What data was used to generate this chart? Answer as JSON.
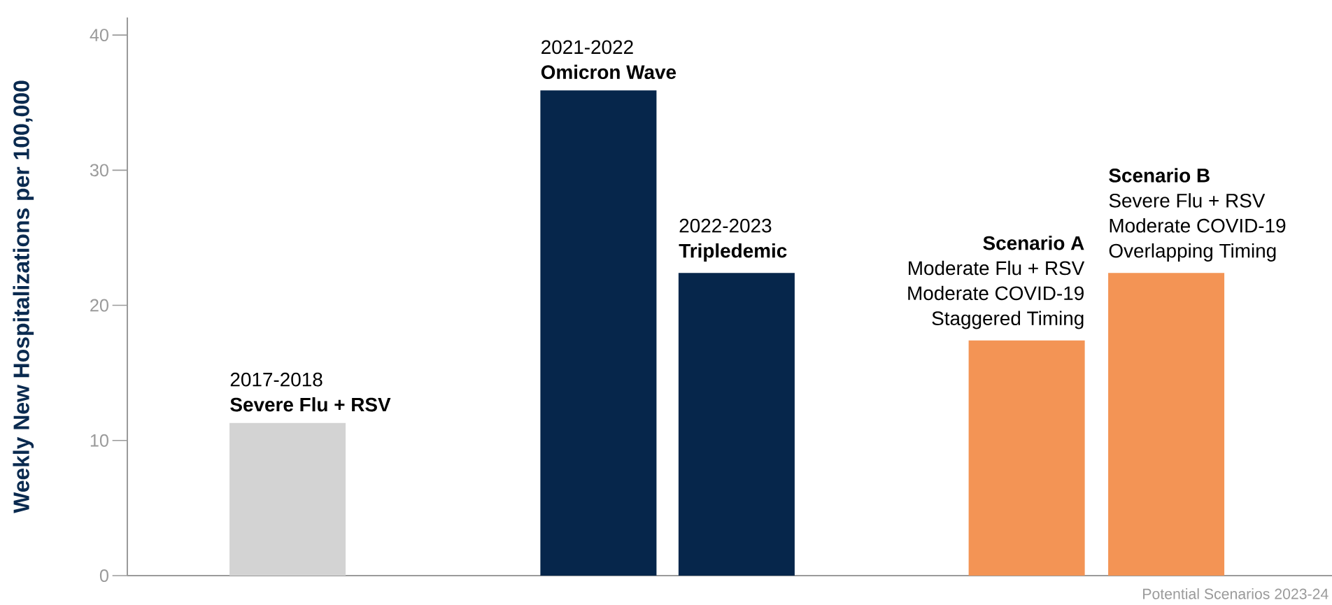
{
  "chart_data": {
    "type": "bar",
    "ylabel": "Weekly New Hospitalizations per 100,000",
    "xlabel": "Potential Scenarios 2023-24",
    "categories": [
      "Severe Flu + RSV",
      "Omicron Wave",
      "Tripledemic",
      "Scenario A",
      "Scenario B"
    ],
    "values": [
      11.3,
      35.9,
      22.4,
      17.4,
      22.4
    ],
    "colors": [
      "#d3d3d3",
      "#06264b",
      "#06264b",
      "#f39455",
      "#f39455"
    ],
    "ylim": [
      0,
      41.3
    ],
    "yticks": [
      0,
      10,
      20,
      30,
      40
    ],
    "annotations": [
      "2017-2018",
      "2021-2022",
      "2022-2023",
      "Moderate Flu + RSV",
      "Moderate COVID-19",
      "Staggered Timing",
      "Severe Flu + RSV",
      "Moderate COVID-19",
      "Overlapping Timing"
    ]
  }
}
